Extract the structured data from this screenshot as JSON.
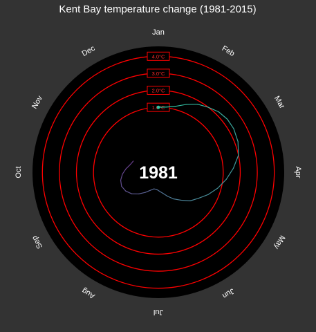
{
  "chart_data": {
    "type": "line",
    "coordinate_system": "polar",
    "title": "Kent Bay temperature change (1981-2015)",
    "year_label": "1981",
    "months": [
      "Jan",
      "Feb",
      "Mar",
      "Apr",
      "May",
      "Jun",
      "Jul",
      "Aug",
      "Sep",
      "Oct",
      "Nov",
      "Dec"
    ],
    "rings": [
      {
        "label": "1.0°C",
        "value": 1.0
      },
      {
        "label": "2.0°C",
        "value": 2.0
      },
      {
        "label": "3.0°C",
        "value": 3.0
      },
      {
        "label": "4.0°C",
        "value": 4.0
      }
    ],
    "r_range": [
      -2.0,
      4.5
    ],
    "series": [
      {
        "x": [
          1.0,
          1.25,
          1.5,
          1.75,
          2.0,
          2.25,
          2.5,
          2.75,
          3.0,
          3.3,
          3.6,
          3.9,
          4.2,
          4.5,
          4.8,
          5.1,
          5.4,
          5.7,
          6.0,
          6.3,
          6.6,
          6.9,
          7.2,
          7.5,
          7.8,
          8.1,
          8.4,
          8.7,
          9.0,
          9.3,
          9.6,
          9.9,
          10.2,
          10.5,
          10.8
        ],
        "values": [
          1.0,
          1.05,
          1.2,
          1.5,
          1.8,
          2.0,
          2.2,
          2.3,
          2.3,
          2.2,
          2.0,
          1.6,
          1.2,
          0.8,
          0.4,
          0.0,
          -0.3,
          -0.7,
          -1.0,
          -1.3,
          -1.55,
          -1.7,
          -1.8,
          -1.8,
          -1.65,
          -1.4,
          -1.1,
          -0.8,
          -0.6,
          -0.5,
          -0.55,
          -0.7,
          -0.9,
          -1.1,
          -1.2
        ]
      }
    ],
    "colors": {
      "background": "#333333",
      "plot_background": "#000000",
      "ring": "#ff0000",
      "line_start": "#2fc4a1",
      "line_end": "#6a3a8c",
      "text": "#ffffff"
    }
  }
}
